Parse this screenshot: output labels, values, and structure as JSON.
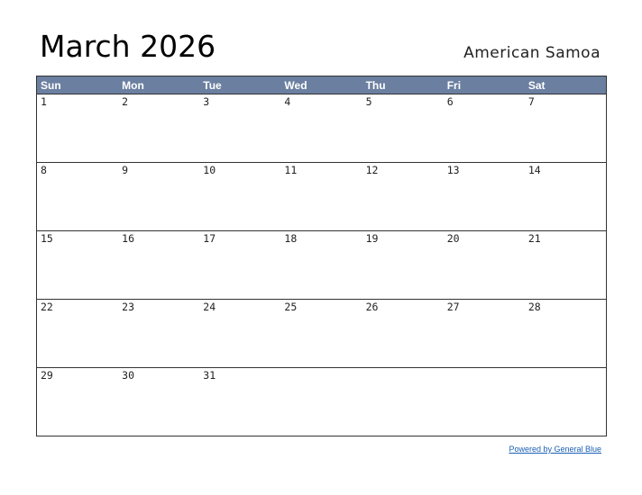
{
  "header": {
    "title": "March 2026",
    "region": "American Samoa"
  },
  "calendar": {
    "weekdays": [
      "Sun",
      "Mon",
      "Tue",
      "Wed",
      "Thu",
      "Fri",
      "Sat"
    ],
    "weeks": [
      [
        "1",
        "2",
        "3",
        "4",
        "5",
        "6",
        "7"
      ],
      [
        "8",
        "9",
        "10",
        "11",
        "12",
        "13",
        "14"
      ],
      [
        "15",
        "16",
        "17",
        "18",
        "19",
        "20",
        "21"
      ],
      [
        "22",
        "23",
        "24",
        "25",
        "26",
        "27",
        "28"
      ],
      [
        "29",
        "30",
        "31",
        "",
        "",
        "",
        ""
      ]
    ],
    "header_color": "#6b7fa0"
  },
  "footer": {
    "link_text": "Powered by General Blue",
    "link_color": "#1a5fb4"
  }
}
